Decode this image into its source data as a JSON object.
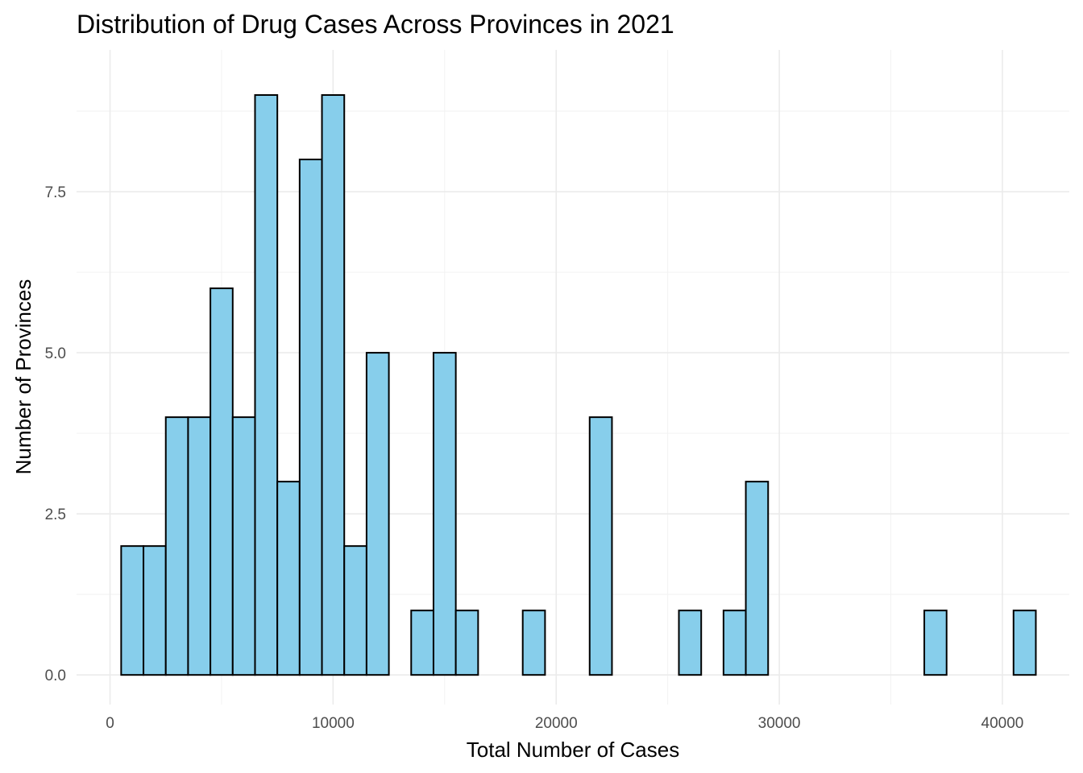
{
  "chart_data": {
    "type": "histogram",
    "title": "Distribution of Drug Cases Across Provinces in 2021",
    "xlabel": "Total Number of Cases",
    "ylabel": "Number of Provinces",
    "xlim": [
      -1500,
      43000
    ],
    "ylim": [
      -0.46,
      9.7
    ],
    "x_ticks": [
      0,
      10000,
      20000,
      30000,
      40000
    ],
    "x_tick_labels": [
      "0",
      "10000",
      "20000",
      "30000",
      "40000"
    ],
    "y_ticks": [
      0,
      2.5,
      5,
      7.5
    ],
    "y_tick_labels": [
      "0.0",
      "2.5",
      "5.0",
      "7.5"
    ],
    "bin_width": 1000,
    "bin_start": 500,
    "counts": [
      2,
      2,
      4,
      4,
      6,
      4,
      9,
      3,
      8,
      9,
      2,
      5,
      0,
      1,
      5,
      1,
      0,
      0,
      1,
      0,
      0,
      4,
      0,
      0,
      0,
      1,
      0,
      1,
      3,
      0,
      0,
      0,
      0,
      0,
      0,
      0,
      1,
      0,
      0,
      0,
      1
    ],
    "grid": true,
    "bar_fill": "#87CEEB",
    "bar_outline": "#000000"
  }
}
